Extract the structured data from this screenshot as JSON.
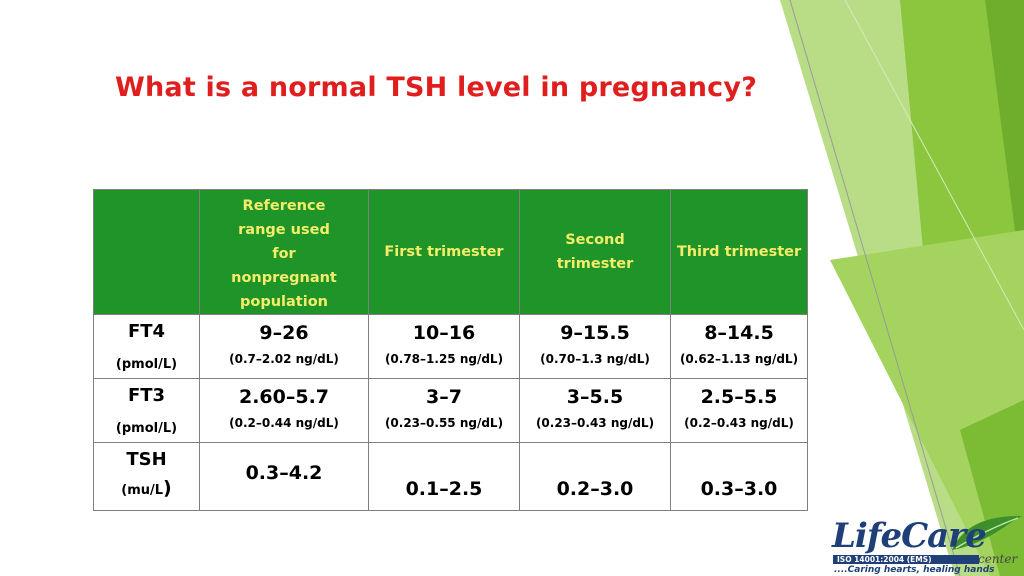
{
  "title": "What is a normal TSH level in pregnancy?",
  "table": {
    "headers": [
      "",
      "Reference range used for nonpregnant population",
      "First trimester",
      "Second trimester",
      "Third trimester"
    ],
    "rows": [
      {
        "name": "FT4",
        "unit": "(pmol/L)",
        "cells": [
          {
            "value": "9–26",
            "sub": "(0.7–2.02 ng/dL)"
          },
          {
            "value": "10–16",
            "sub": "(0.78–1.25 ng/dL)"
          },
          {
            "value": "9–15.5",
            "sub": "(0.70–1.3 ng/dL)"
          },
          {
            "value": "8–14.5",
            "sub": "(0.62–1.13 ng/dL)"
          }
        ]
      },
      {
        "name": "FT3",
        "unit": "(pmol/L)",
        "cells": [
          {
            "value": "2.60–5.7",
            "sub": "(0.2–0.44 ng/dL)"
          },
          {
            "value": "3–7",
            "sub": "(0.23–0.55 ng/dL)"
          },
          {
            "value": "3–5.5",
            "sub": "(0.23–0.43 ng/dL)"
          },
          {
            "value": "2.5–5.5",
            "sub": "(0.2–0.43 ng/dL)"
          }
        ]
      },
      {
        "name": "TSH",
        "unit": "(mu/L",
        "unit_close": ")",
        "cells": [
          {
            "value": "0.3–4.2"
          },
          {
            "value": "0.1–2.5"
          },
          {
            "value": "0.2–3.0"
          },
          {
            "value": "0.3–3.0"
          }
        ]
      }
    ]
  },
  "logo": {
    "name": "LifeCare",
    "suffix": "center",
    "iso": "ISO 14001:2004 (EMS)",
    "tagline": "....Caring hearts, healing hands"
  },
  "colors": {
    "title": "#e01e1e",
    "header_bg": "#1f9428",
    "header_text": "#f5ec6a",
    "accent_green": "#8cc63f"
  }
}
